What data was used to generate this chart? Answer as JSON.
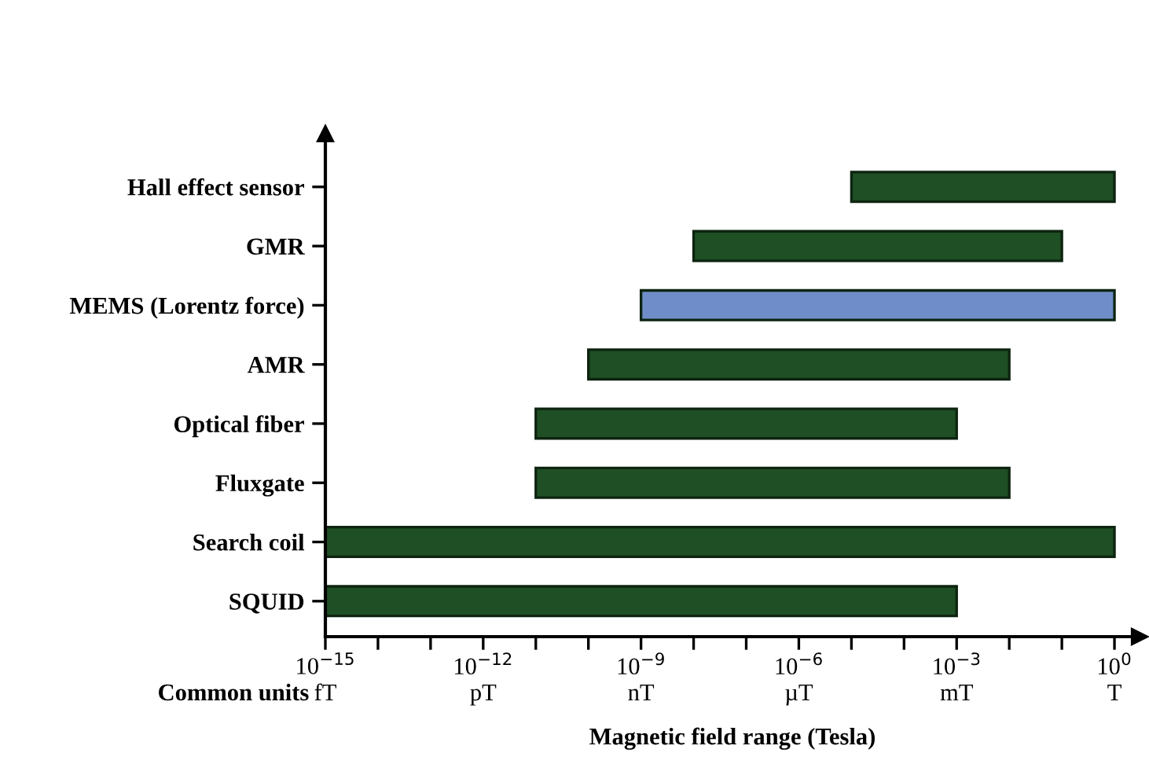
{
  "chart_data": {
    "type": "bar",
    "orientation": "horizontal",
    "log": "x",
    "xlabel": "Magnetic field range (Tesla)",
    "categories": [
      "Hall effect sensor",
      "GMR",
      "MEMS (Lorentz force)",
      "AMR",
      "Optical fiber",
      "Fluxgate",
      "Search coil",
      "SQUID"
    ],
    "base": [
      1e-05,
      1e-08,
      1e-09,
      1e-10,
      1e-11,
      1e-11,
      1e-15,
      1e-15
    ],
    "values": [
      0.99999,
      0.09999999,
      0.999999999,
      0.0099999999,
      0.00099999999,
      0.00999999999,
      0.999999999999999,
      0.000999999999999
    ],
    "colors": [
      "#1f4f24",
      "#1f4f24",
      "#6f8ec9",
      "#1f4f24",
      "#1f4f24",
      "#1f4f24",
      "#1f4f24",
      "#1f4f24"
    ],
    "xlim": [
      1e-15,
      3
    ],
    "xticks": [
      {
        "value": 1e-15,
        "label": "10$^{−15}$"
      },
      {
        "value": 1e-14,
        "label": null
      },
      {
        "value": 1e-13,
        "label": null
      },
      {
        "value": 1e-12,
        "label": "10$^{−12}$"
      },
      {
        "value": 1e-11,
        "label": null
      },
      {
        "value": 1e-10,
        "label": null
      },
      {
        "value": 1e-09,
        "label": "10$^{−9}$"
      },
      {
        "value": 1e-08,
        "label": null
      },
      {
        "value": 1e-07,
        "label": null
      },
      {
        "value": 1e-06,
        "label": "10$^{−6}$"
      },
      {
        "value": 1e-05,
        "label": null
      },
      {
        "value": 0.0001,
        "label": null
      },
      {
        "value": 0.001,
        "label": "10$^{−3}$"
      },
      {
        "value": 0.01,
        "label": null
      },
      {
        "value": 0.1,
        "label": null
      },
      {
        "value": 1,
        "label": "10$^{0}$"
      }
    ],
    "annotations": [
      "Common units",
      "fT",
      "pT",
      "nT",
      "µT",
      "mT",
      "T"
    ],
    "grid": false,
    "legend": false
  }
}
